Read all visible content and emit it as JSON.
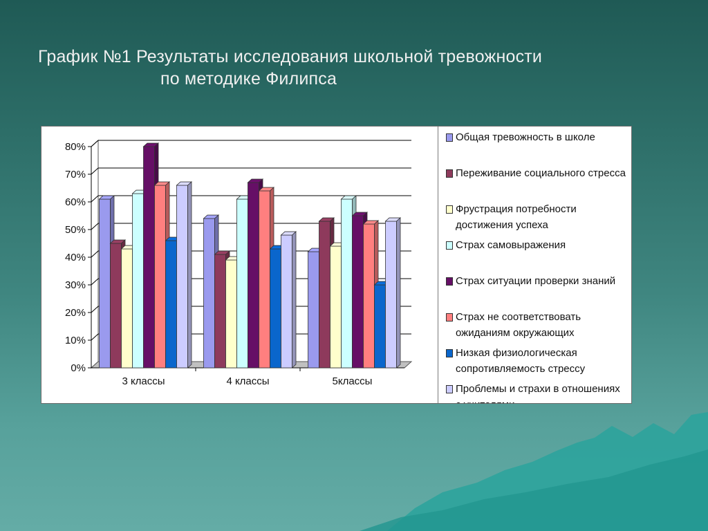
{
  "title": {
    "line1": "График №1  Результаты исследования школьной тревожности",
    "line2": "по методике Филипса"
  },
  "chart_data": {
    "type": "bar",
    "categories": [
      "3 классы",
      "4 классы",
      "5классы"
    ],
    "ylim": [
      0,
      80
    ],
    "yticks": [
      "0%",
      "10%",
      "20%",
      "30%",
      "40%",
      "50%",
      "60%",
      "70%",
      "80%"
    ],
    "grid": true,
    "legend_position": "right",
    "series": [
      {
        "name": "Общая тревожность в школе",
        "color": "#9a9aee",
        "values": [
          61,
          54,
          42
        ]
      },
      {
        "name": "Переживание социального стресса",
        "color": "#8e3a5c",
        "values": [
          45,
          41,
          53
        ]
      },
      {
        "name": "Фрустрация потребности достижения успеха",
        "color": "#ffffcc",
        "values": [
          43,
          39,
          44
        ]
      },
      {
        "name": "Страх самовыражения",
        "color": "#ccffff",
        "values": [
          63,
          61,
          61
        ]
      },
      {
        "name": "Страх ситуации проверки знаний",
        "color": "#660f66",
        "values": [
          80,
          67,
          55
        ]
      },
      {
        "name": "Страх не соответствовать ожиданиям окружающих",
        "color": "#ff7f7f",
        "values": [
          66,
          64,
          52
        ]
      },
      {
        "name": "Низкая физиологическая сопротивляемость стрессу",
        "color": "#0a66cc",
        "values": [
          46,
          43,
          30
        ]
      },
      {
        "name": "Проблемы и страхи в отношениях с учителями",
        "color": "#ccccff",
        "values": [
          66,
          48,
          53
        ]
      }
    ]
  }
}
